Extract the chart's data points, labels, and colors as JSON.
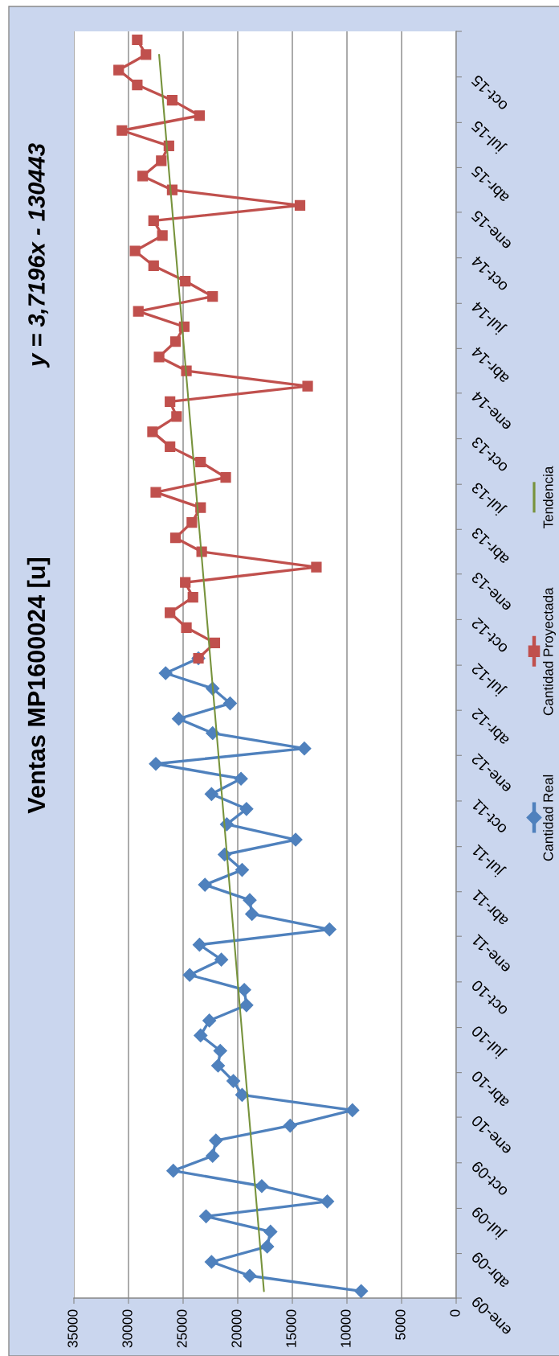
{
  "chart_data": {
    "type": "line",
    "orientation": "horizontal",
    "title": "Ventas MP1600024 [u]",
    "annotations": [
      "y = 3,7196x - 130443"
    ],
    "xlim": [
      35000,
      0
    ],
    "xticks": [
      0,
      5000,
      10000,
      15000,
      20000,
      25000,
      30000,
      35000
    ],
    "ylim": [
      "2009-01-01",
      "2016-01-01"
    ],
    "yticks": [
      {
        "value": "2009-01-01",
        "label": "ene-09"
      },
      {
        "value": "2009-04-01",
        "label": "abr-09"
      },
      {
        "value": "2009-07-01",
        "label": "jul-09"
      },
      {
        "value": "2009-10-01",
        "label": "oct-09"
      },
      {
        "value": "2010-01-01",
        "label": "ene-10"
      },
      {
        "value": "2010-04-01",
        "label": "abr-10"
      },
      {
        "value": "2010-07-01",
        "label": "jul-10"
      },
      {
        "value": "2010-10-01",
        "label": "oct-10"
      },
      {
        "value": "2011-01-01",
        "label": "ene-11"
      },
      {
        "value": "2011-04-01",
        "label": "abr-11"
      },
      {
        "value": "2011-07-01",
        "label": "jul-11"
      },
      {
        "value": "2011-10-01",
        "label": "oct-11"
      },
      {
        "value": "2012-01-01",
        "label": "ene-12"
      },
      {
        "value": "2012-04-01",
        "label": "abr-12"
      },
      {
        "value": "2012-07-01",
        "label": "jul-12"
      },
      {
        "value": "2012-10-01",
        "label": "oct-12"
      },
      {
        "value": "2013-01-01",
        "label": "ene-13"
      },
      {
        "value": "2013-04-01",
        "label": "abr-13"
      },
      {
        "value": "2013-07-01",
        "label": "jul-13"
      },
      {
        "value": "2013-10-01",
        "label": "oct-13"
      },
      {
        "value": "2014-01-01",
        "label": "ene-14"
      },
      {
        "value": "2014-04-01",
        "label": "abr-14"
      },
      {
        "value": "2014-07-01",
        "label": "jul-14"
      },
      {
        "value": "2014-10-01",
        "label": "oct-14"
      },
      {
        "value": "2015-01-01",
        "label": "ene-15"
      },
      {
        "value": "2015-04-01",
        "label": "abr-15"
      },
      {
        "value": "2015-07-01",
        "label": "jul-15"
      },
      {
        "value": "2015-10-01",
        "label": "oct-15"
      },
      {
        "value": "2016-01-01",
        "label": null
      }
    ],
    "grid": "x",
    "legend": "right",
    "series": [
      {
        "name": "Cantidad Real",
        "color": "#4f81bd",
        "marker": "diamond",
        "x": [
          "2009-01-15",
          "2009-02-15",
          "2009-03-15",
          "2009-04-15",
          "2009-05-15",
          "2009-06-15",
          "2009-07-15",
          "2009-08-15",
          "2009-09-15",
          "2009-10-15",
          "2009-11-15",
          "2009-12-15",
          "2010-01-15",
          "2010-02-15",
          "2010-03-15",
          "2010-04-15",
          "2010-05-15",
          "2010-06-15",
          "2010-07-15",
          "2010-08-15",
          "2010-09-15",
          "2010-10-15",
          "2010-11-15",
          "2010-12-15",
          "2011-01-15",
          "2011-02-15",
          "2011-03-15",
          "2011-04-15",
          "2011-05-15",
          "2011-06-15",
          "2011-07-15",
          "2011-08-15",
          "2011-09-15",
          "2011-10-15",
          "2011-11-15",
          "2011-12-15",
          "2012-01-15",
          "2012-02-15",
          "2012-03-15",
          "2012-04-15",
          "2012-05-15",
          "2012-06-15",
          "2012-07-15"
        ],
        "values": [
          8700,
          18900,
          22400,
          17300,
          17000,
          22900,
          11800,
          17800,
          25900,
          22300,
          22000,
          15200,
          9500,
          19600,
          20400,
          21800,
          21600,
          23400,
          22600,
          19200,
          19400,
          24400,
          21500,
          23500,
          11600,
          18700,
          18900,
          23000,
          19600,
          21200,
          14700,
          21000,
          19200,
          22400,
          19700,
          27500,
          13900,
          22300,
          25400,
          20700,
          22300,
          26600,
          23600
        ]
      },
      {
        "name": "Cantidad Proyectada",
        "color": "#c0504d",
        "marker": "square",
        "x": [
          "2012-07-15",
          "2012-08-15",
          "2012-09-15",
          "2012-10-15",
          "2012-11-15",
          "2012-12-15",
          "2013-01-15",
          "2013-02-15",
          "2013-03-15",
          "2013-04-15",
          "2013-05-15",
          "2013-06-15",
          "2013-07-15",
          "2013-08-15",
          "2013-09-15",
          "2013-10-15",
          "2013-11-15",
          "2013-12-15",
          "2014-01-15",
          "2014-02-15",
          "2014-03-15",
          "2014-04-15",
          "2014-05-15",
          "2014-06-15",
          "2014-07-15",
          "2014-08-15",
          "2014-09-15",
          "2014-10-15",
          "2014-11-15",
          "2014-12-15",
          "2015-01-15",
          "2015-02-15",
          "2015-03-15",
          "2015-04-15",
          "2015-05-15",
          "2015-06-15",
          "2015-07-15",
          "2015-08-15",
          "2015-09-15",
          "2015-10-15",
          "2015-11-15",
          "2015-12-15"
        ],
        "values": [
          23600,
          22100,
          24700,
          26200,
          24100,
          24800,
          12800,
          23300,
          25700,
          24200,
          23400,
          27500,
          21100,
          23400,
          26200,
          27800,
          25600,
          26200,
          13600,
          24700,
          27200,
          25700,
          24900,
          29100,
          22300,
          24800,
          27700,
          29400,
          26900,
          27700,
          14300,
          26000,
          28700,
          27000,
          26300,
          30600,
          23500,
          26000,
          29200,
          30900,
          28400,
          29200
        ]
      },
      {
        "name": "Tendencia",
        "color": "#77933c",
        "marker": "none",
        "x": [
          "2009-01-15",
          "2015-11-15"
        ],
        "values": [
          17600,
          27200
        ]
      }
    ]
  }
}
